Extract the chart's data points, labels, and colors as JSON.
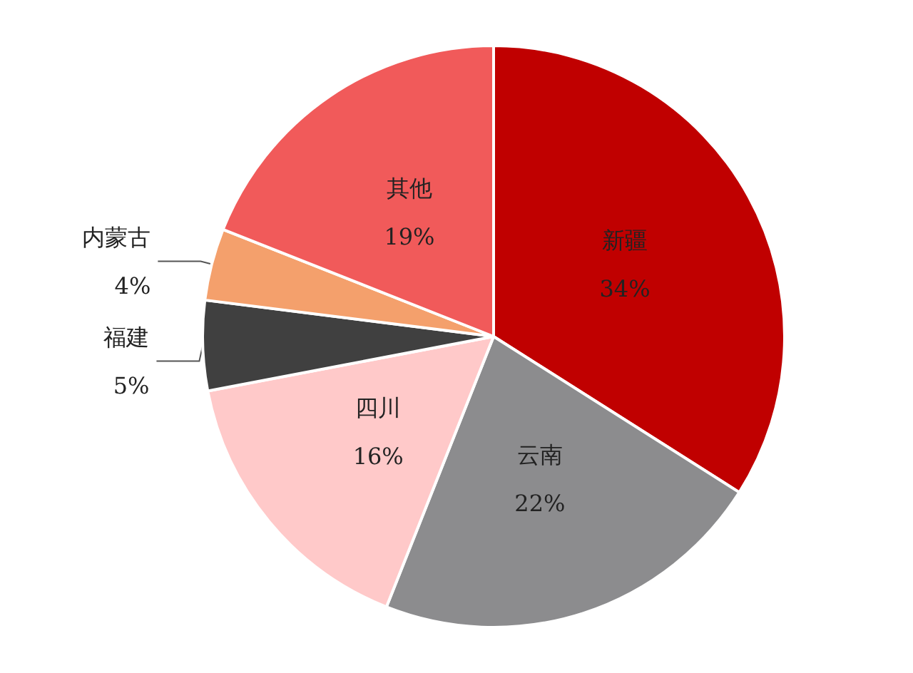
{
  "chart_data": {
    "type": "pie",
    "categories": [
      "新疆",
      "云南",
      "四川",
      "福建",
      "内蒙古",
      "其他"
    ],
    "values": [
      34,
      22,
      16,
      5,
      4,
      19
    ],
    "value_labels": [
      "34%",
      "22%",
      "16%",
      "5%",
      "4%",
      "19%"
    ],
    "colors": [
      "#c00000",
      "#8c8c8e",
      "#ffc9c9",
      "#404040",
      "#f4a06c",
      "#f15a5a"
    ],
    "legend": false
  }
}
